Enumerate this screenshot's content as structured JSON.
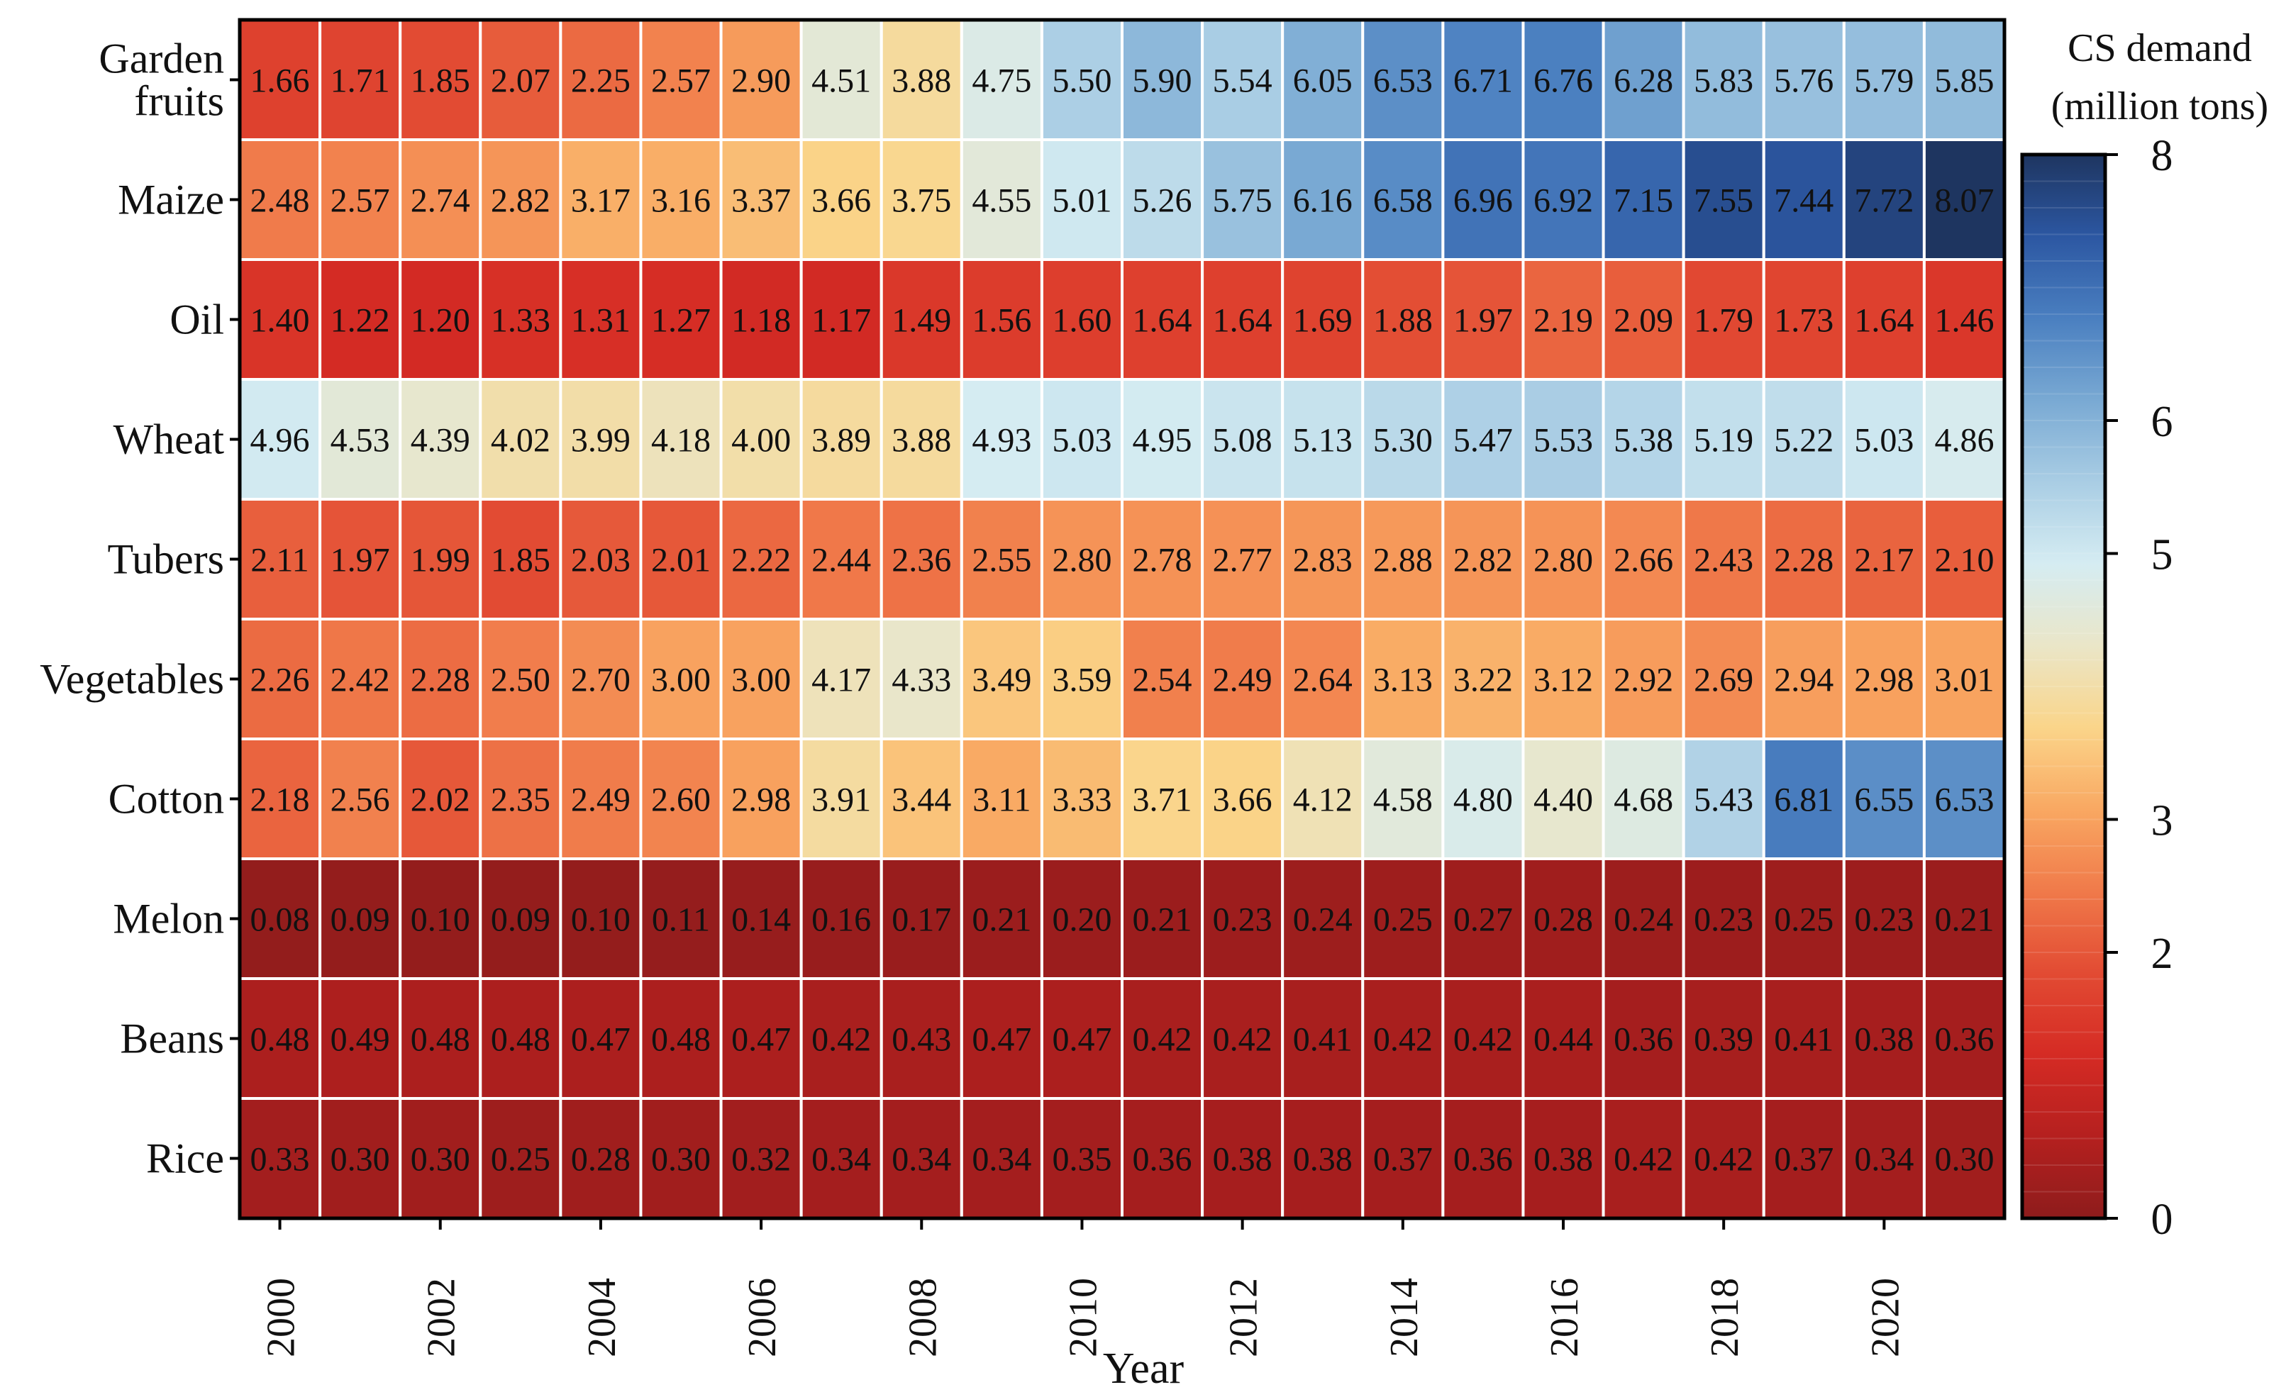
{
  "chart_data": {
    "type": "heatmap",
    "title": "",
    "xlabel": "Year",
    "ylabel": "",
    "colorbar_label_line1": "CS demand",
    "colorbar_label_line2": "(million tons)",
    "colorbar_range": [
      0,
      8
    ],
    "colorbar_ticks": [
      "0",
      "2",
      "3",
      "5",
      "6",
      "8"
    ],
    "colorbar_tick_values": [
      0,
      2,
      3,
      5,
      6,
      8
    ],
    "x_categories": [
      "2000",
      "2001",
      "2002",
      "2003",
      "2004",
      "2005",
      "2006",
      "2007",
      "2008",
      "2009",
      "2010",
      "2011",
      "2012",
      "2013",
      "2014",
      "2015",
      "2016",
      "2017",
      "2018",
      "2019",
      "2020",
      "2021"
    ],
    "x_tick_labels": [
      "2000",
      "2002",
      "2004",
      "2006",
      "2008",
      "2010",
      "2012",
      "2014",
      "2016",
      "2018",
      "2020"
    ],
    "rows": [
      {
        "label_lines": [
          "Garden",
          "fruits"
        ],
        "values": [
          "1.66",
          "1.71",
          "1.85",
          "2.07",
          "2.25",
          "2.57",
          "2.90",
          "4.51",
          "3.88",
          "4.75",
          "5.50",
          "5.90",
          "5.54",
          "6.05",
          "6.53",
          "6.71",
          "6.76",
          "6.28",
          "5.83",
          "5.76",
          "5.79",
          "5.85"
        ]
      },
      {
        "label_lines": [
          "Maize"
        ],
        "values": [
          "2.48",
          "2.57",
          "2.74",
          "2.82",
          "3.17",
          "3.16",
          "3.37",
          "3.66",
          "3.75",
          "4.55",
          "5.01",
          "5.26",
          "5.75",
          "6.16",
          "6.58",
          "6.96",
          "6.92",
          "7.15",
          "7.55",
          "7.44",
          "7.72",
          "8.07"
        ]
      },
      {
        "label_lines": [
          "Oil"
        ],
        "values": [
          "1.40",
          "1.22",
          "1.20",
          "1.33",
          "1.31",
          "1.27",
          "1.18",
          "1.17",
          "1.49",
          "1.56",
          "1.60",
          "1.64",
          "1.64",
          "1.69",
          "1.88",
          "1.97",
          "2.19",
          "2.09",
          "1.79",
          "1.73",
          "1.64",
          "1.46"
        ]
      },
      {
        "label_lines": [
          "Wheat"
        ],
        "values": [
          "4.96",
          "4.53",
          "4.39",
          "4.02",
          "3.99",
          "4.18",
          "4.00",
          "3.89",
          "3.88",
          "4.93",
          "5.03",
          "4.95",
          "5.08",
          "5.13",
          "5.30",
          "5.47",
          "5.53",
          "5.38",
          "5.19",
          "5.22",
          "5.03",
          "4.86"
        ]
      },
      {
        "label_lines": [
          "Tubers"
        ],
        "values": [
          "2.11",
          "1.97",
          "1.99",
          "1.85",
          "2.03",
          "2.01",
          "2.22",
          "2.44",
          "2.36",
          "2.55",
          "2.80",
          "2.78",
          "2.77",
          "2.83",
          "2.88",
          "2.82",
          "2.80",
          "2.66",
          "2.43",
          "2.28",
          "2.17",
          "2.10"
        ]
      },
      {
        "label_lines": [
          "Vegetables"
        ],
        "values": [
          "2.26",
          "2.42",
          "2.28",
          "2.50",
          "2.70",
          "3.00",
          "3.00",
          "4.17",
          "4.33",
          "3.49",
          "3.59",
          "2.54",
          "2.49",
          "2.64",
          "3.13",
          "3.22",
          "3.12",
          "2.92",
          "2.69",
          "2.94",
          "2.98",
          "3.01"
        ]
      },
      {
        "label_lines": [
          "Cotton"
        ],
        "values": [
          "2.18",
          "2.56",
          "2.02",
          "2.35",
          "2.49",
          "2.60",
          "2.98",
          "3.91",
          "3.44",
          "3.11",
          "3.33",
          "3.71",
          "3.66",
          "4.12",
          "4.58",
          "4.80",
          "4.40",
          "4.68",
          "5.43",
          "6.81",
          "6.55",
          "6.53"
        ]
      },
      {
        "label_lines": [
          "Melon"
        ],
        "values": [
          "0.08",
          "0.09",
          "0.10",
          "0.09",
          "0.10",
          "0.11",
          "0.14",
          "0.16",
          "0.17",
          "0.21",
          "0.20",
          "0.21",
          "0.23",
          "0.24",
          "0.25",
          "0.27",
          "0.28",
          "0.24",
          "0.23",
          "0.25",
          "0.23",
          "0.21"
        ]
      },
      {
        "label_lines": [
          "Beans"
        ],
        "values": [
          "0.48",
          "0.49",
          "0.48",
          "0.48",
          "0.47",
          "0.48",
          "0.47",
          "0.42",
          "0.43",
          "0.47",
          "0.47",
          "0.42",
          "0.42",
          "0.41",
          "0.42",
          "0.42",
          "0.44",
          "0.36",
          "0.39",
          "0.41",
          "0.38",
          "0.36"
        ]
      },
      {
        "label_lines": [
          "Rice"
        ],
        "values": [
          "0.33",
          "0.30",
          "0.30",
          "0.25",
          "0.28",
          "0.30",
          "0.32",
          "0.34",
          "0.34",
          "0.34",
          "0.35",
          "0.36",
          "0.38",
          "0.38",
          "0.37",
          "0.36",
          "0.38",
          "0.42",
          "0.42",
          "0.37",
          "0.34",
          "0.30"
        ]
      }
    ],
    "colormap_stops": [
      "#8e1c1c",
      "#b5201f",
      "#d52b24",
      "#e24b33",
      "#f07a4a",
      "#f9a862",
      "#fad58a",
      "#eae6c8",
      "#d5ecf2",
      "#a9cde4",
      "#79a9d3",
      "#4a7fc0",
      "#2c57a2",
      "#1e3560"
    ],
    "cell_border_color": "#ffffff",
    "frame_color": "#000000"
  }
}
